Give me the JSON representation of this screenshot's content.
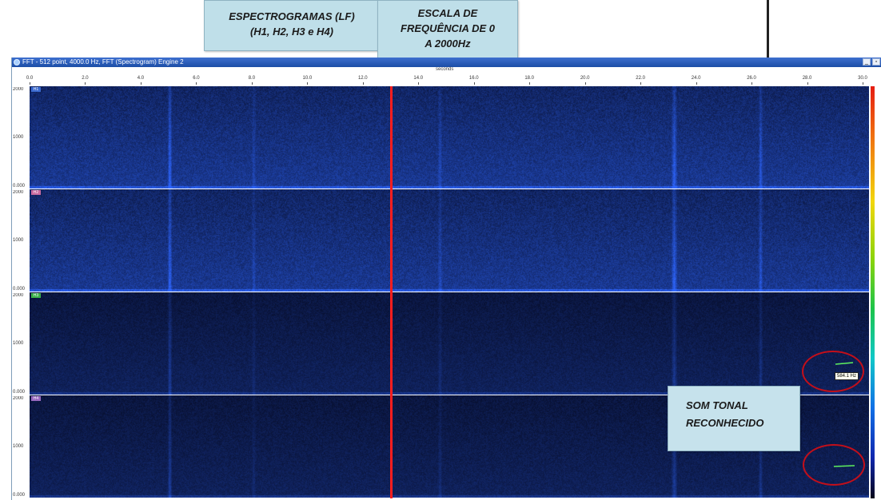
{
  "annotations": {
    "spectrograms": [
      "ESPECTROGRAMAS (LF)",
      "(H1, H2, H3 e H4)"
    ],
    "frequency_scale": [
      "ESCALA DE",
      "FREQUÊNCIA DE 0",
      "A 2000Hz"
    ],
    "tonal_sound": [
      "SOM TONAL",
      "RECONHECIDO"
    ]
  },
  "window": {
    "title": "FFT - 512 point, 4000.0 Hz, FFT (Spectrogram) Engine 2",
    "minimize_glyph": "_",
    "restore_glyph": "▫"
  },
  "x_axis": {
    "title": "seconds",
    "ticks": [
      "0.0",
      "2.0",
      "4.0",
      "6.0",
      "8.0",
      "10.0",
      "12.0",
      "14.0",
      "16.0",
      "18.0",
      "20.0",
      "22.0",
      "24.0",
      "26.0",
      "28.0",
      "30.0"
    ]
  },
  "panels": [
    {
      "label": "H1",
      "color": "#3a6ad0",
      "y_ticks": [
        "2000",
        "1000",
        "0.000"
      ]
    },
    {
      "label": "H2",
      "color": "#c96ba0",
      "y_ticks": [
        "2000",
        "1000",
        "0.000"
      ]
    },
    {
      "label": "H3",
      "color": "#3ab04a",
      "y_ticks": [
        "2000",
        "1000",
        "0.000"
      ]
    },
    {
      "label": "H4",
      "color": "#9a6ac0",
      "y_ticks": [
        "2000",
        "1000",
        "0.000"
      ]
    }
  ],
  "colors": {
    "spectrogram_background": "#060d28",
    "cursor_line": "#ff1e1e",
    "callout_fill": "#bfdfe9",
    "highlight_ring": "#c20f1a",
    "tonal_trace": "#5ff25f"
  },
  "cursor_time_seconds": 13.0,
  "detected_tone": {
    "readout": "584.1 Hz"
  }
}
